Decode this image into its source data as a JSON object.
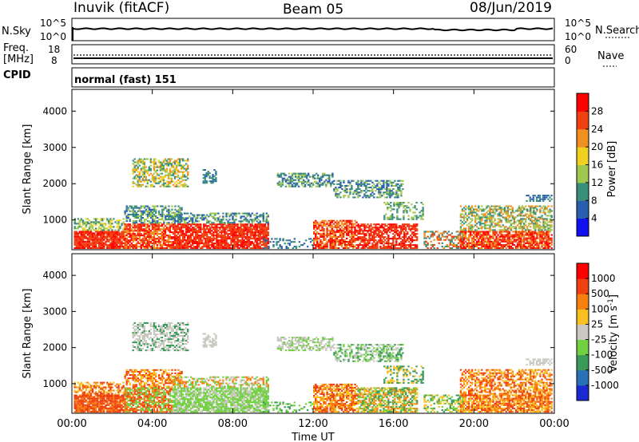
{
  "header": {
    "title": "Inuvik (fitACF)",
    "beam": "Beam 05",
    "date": "08/Jun/2019"
  },
  "top_panel": {
    "left_label": "N.Sky",
    "right_label": "N.Search",
    "left_ticks": [
      "10^5",
      "10^0"
    ],
    "right_ticks": [
      "10^5",
      "10^0"
    ]
  },
  "freq_panel": {
    "left_label_1": "Freq.",
    "left_label_2": "[MHz]",
    "right_label": "Nave",
    "left_ticks": [
      "18",
      "8"
    ],
    "right_ticks": [
      "60",
      "0"
    ]
  },
  "cpid": {
    "label": "CPID",
    "mode": "normal (fast) 151"
  },
  "chart_data": [
    {
      "type": "heatmap",
      "title": "Power [dB]",
      "ylabel": "Slant Range [km]",
      "xlabel": "Time UT",
      "x_ticks": [
        "00:00",
        "04:00",
        "08:00",
        "12:00",
        "16:00",
        "20:00",
        "00:00"
      ],
      "y_ticks": [
        1000,
        2000,
        3000,
        4000
      ],
      "ylim": [
        180,
        4600
      ],
      "colorbar_label": "Power [dB]",
      "colorbar_ticks": [
        4,
        8,
        12,
        16,
        20,
        24,
        28
      ],
      "colorbar_colors": [
        "#1010f0",
        "#2a5fb0",
        "#3a8f7a",
        "#a0c850",
        "#f0d020",
        "#f09020",
        "#f04010",
        "#ff0000"
      ]
    },
    {
      "type": "heatmap",
      "title": "Velocity [m s^-1]",
      "ylabel": "Slant Range [km]",
      "xlabel": "Time UT",
      "x_ticks": [
        "00:00",
        "04:00",
        "08:00",
        "12:00",
        "16:00",
        "20:00",
        "00:00"
      ],
      "y_ticks": [
        1000,
        2000,
        3000,
        4000
      ],
      "ylim": [
        180,
        4600
      ],
      "colorbar_label": "Velocity [m s^-1]",
      "colorbar_ticks": [
        1000,
        500,
        100,
        25,
        -25,
        -100,
        -500,
        -1000
      ],
      "colorbar_colors": [
        "#1a2ad0",
        "#2a70b8",
        "#3a9a5a",
        "#70d040",
        "#c8c8c0",
        "#f8c020",
        "#f88010",
        "#f04010",
        "#ff0000"
      ]
    }
  ],
  "xaxis_label": "Time UT"
}
